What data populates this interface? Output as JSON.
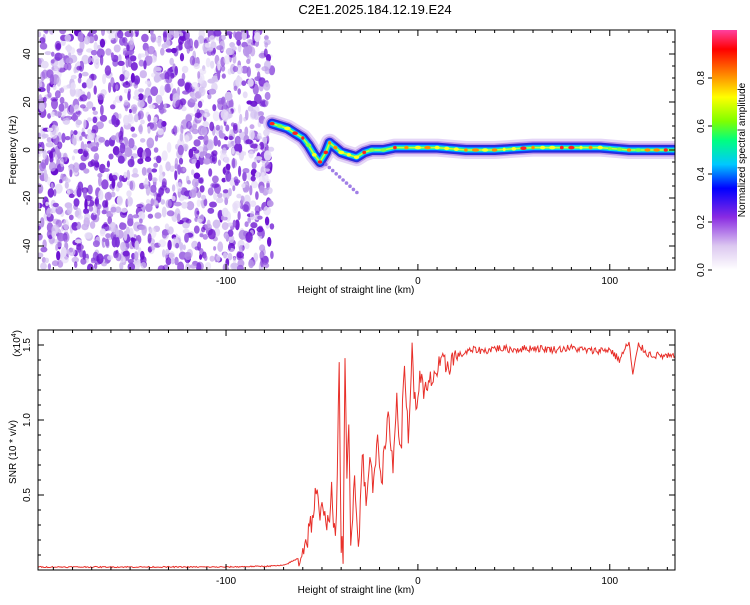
{
  "title": "C2E1.2025.184.12.19.E24",
  "chart_data": [
    {
      "type": "heatmap",
      "xlabel": "Height of straight line (km)",
      "ylabel": "Frequency (Hz)",
      "xlim": [
        -198,
        134
      ],
      "ylim": [
        -50,
        50
      ],
      "xticks": [
        -100,
        0,
        100
      ],
      "yticks": [
        -40,
        -20,
        0,
        20,
        40
      ],
      "colorbar": {
        "label": "Normalized spectral amplitude",
        "range": [
          0,
          1
        ],
        "ticks": [
          "0.0",
          "0.2",
          "0.4",
          "0.6",
          "0.8"
        ],
        "colormap": [
          "#ffffff",
          "#dcc8f0",
          "#8a2be2",
          "#0000ff",
          "#00c8ff",
          "#00ff80",
          "#80ff00",
          "#ffff00",
          "#ff8000",
          "#ff0000",
          "#ff40a0"
        ]
      },
      "noise_region_x": [
        -198,
        -76
      ],
      "ridge": [
        {
          "x": -76,
          "f": 11
        },
        {
          "x": -72,
          "f": 10
        },
        {
          "x": -68,
          "f": 9
        },
        {
          "x": -64,
          "f": 7
        },
        {
          "x": -60,
          "f": 5
        },
        {
          "x": -57,
          "f": 2
        },
        {
          "x": -54,
          "f": -2
        },
        {
          "x": -51,
          "f": -5
        },
        {
          "x": -48,
          "f": -1
        },
        {
          "x": -46,
          "f": 3
        },
        {
          "x": -43,
          "f": 1
        },
        {
          "x": -40,
          "f": -1
        },
        {
          "x": -36,
          "f": -2
        },
        {
          "x": -32,
          "f": -3
        },
        {
          "x": -28,
          "f": -1
        },
        {
          "x": -24,
          "f": 0
        },
        {
          "x": -18,
          "f": 0
        },
        {
          "x": -12,
          "f": 1
        },
        {
          "x": -6,
          "f": 1
        },
        {
          "x": 0,
          "f": 1
        },
        {
          "x": 10,
          "f": 1
        },
        {
          "x": 25,
          "f": 0
        },
        {
          "x": 40,
          "f": 0
        },
        {
          "x": 60,
          "f": 1
        },
        {
          "x": 80,
          "f": 1
        },
        {
          "x": 95,
          "f": 1
        },
        {
          "x": 110,
          "f": 0
        },
        {
          "x": 134,
          "f": 0
        }
      ]
    },
    {
      "type": "line",
      "xlabel": "Height of straight line (km)",
      "ylabel": "SNR (10 * v/v)",
      "y_multiplier": "(x10",
      "y_multiplier_exp": "4",
      "xlim": [
        -198,
        134
      ],
      "ylim": [
        0,
        1.6
      ],
      "xticks": [
        -100,
        0,
        100
      ],
      "yticks": [
        "0.5",
        "1.0",
        "1.5"
      ],
      "color": "#e8302a",
      "series": [
        {
          "x": [
            -198,
            -150,
            -100,
            -80,
            -70,
            -62,
            -58,
            -55,
            -53,
            -51,
            -49,
            -47,
            -45,
            -43,
            -41,
            -40,
            -39,
            -38,
            -37,
            -36,
            -35,
            -33,
            -31,
            -29,
            -27,
            -25,
            -23,
            -21,
            -19,
            -17,
            -15,
            -13,
            -11,
            -9,
            -7,
            -5,
            -3,
            -1,
            1,
            3,
            5,
            8,
            12,
            16,
            20,
            25,
            30,
            35,
            40,
            50,
            60,
            70,
            80,
            90,
            100,
            105,
            110,
            112,
            115,
            120,
            125,
            134
          ],
          "y": [
            0.02,
            0.02,
            0.02,
            0.025,
            0.03,
            0.08,
            0.2,
            0.35,
            0.52,
            0.32,
            0.45,
            0.3,
            0.5,
            0.15,
            1.3,
            0.2,
            0.1,
            1.35,
            0.6,
            0.95,
            0.15,
            0.7,
            0.1,
            0.85,
            0.4,
            0.75,
            0.55,
            0.95,
            0.6,
            0.8,
            1.05,
            0.65,
            1.2,
            0.75,
            1.35,
            0.9,
            1.45,
            1.0,
            1.35,
            1.15,
            1.2,
            1.3,
            1.35,
            1.38,
            1.42,
            1.45,
            1.47,
            1.46,
            1.48,
            1.47,
            1.48,
            1.47,
            1.48,
            1.46,
            1.47,
            1.4,
            1.52,
            1.3,
            1.5,
            1.44,
            1.43,
            1.42
          ]
        }
      ]
    }
  ]
}
